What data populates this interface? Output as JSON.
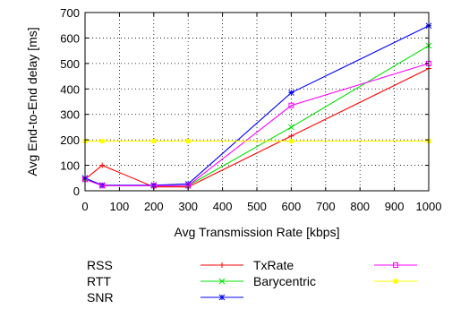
{
  "chart_data": {
    "type": "line",
    "title": "",
    "xlabel": "Avg Transmission Rate [kbps]",
    "ylabel": "Avg End-to-End delay [ms]",
    "xlim": [
      0,
      1000
    ],
    "ylim": [
      0,
      700
    ],
    "xticks": [
      0,
      100,
      200,
      300,
      400,
      500,
      600,
      700,
      800,
      900,
      1000
    ],
    "yticks": [
      0,
      100,
      200,
      300,
      400,
      500,
      600,
      700
    ],
    "grid": true,
    "legend_placement": "below",
    "series": [
      {
        "name": "RSS",
        "color": "#ff0000",
        "marker": "plus",
        "points": [
          [
            0,
            45
          ],
          [
            50,
            100
          ],
          [
            200,
            15
          ],
          [
            300,
            15
          ],
          [
            600,
            215
          ],
          [
            1000,
            480
          ]
        ]
      },
      {
        "name": "RTT",
        "color": "#00e000",
        "marker": "cross",
        "points": [
          [
            0,
            45
          ],
          [
            50,
            20
          ],
          [
            200,
            20
          ],
          [
            300,
            20
          ],
          [
            600,
            250
          ],
          [
            1000,
            570
          ]
        ]
      },
      {
        "name": "SNR",
        "color": "#0000ff",
        "marker": "star",
        "points": [
          [
            0,
            50
          ],
          [
            50,
            22
          ],
          [
            200,
            22
          ],
          [
            300,
            27
          ],
          [
            600,
            385
          ],
          [
            1000,
            648
          ]
        ]
      },
      {
        "name": "TxRate",
        "color": "#ff00ff",
        "marker": "square",
        "points": [
          [
            0,
            45
          ],
          [
            50,
            20
          ],
          [
            200,
            20
          ],
          [
            300,
            20
          ],
          [
            600,
            335
          ],
          [
            1000,
            500
          ]
        ]
      },
      {
        "name": "Barycentric",
        "color": "#ffff00",
        "marker": "filled-square",
        "points": [
          [
            0,
            195
          ],
          [
            50,
            195
          ],
          [
            200,
            195
          ],
          [
            300,
            195
          ],
          [
            600,
            195
          ],
          [
            1000,
            195
          ]
        ]
      }
    ]
  }
}
